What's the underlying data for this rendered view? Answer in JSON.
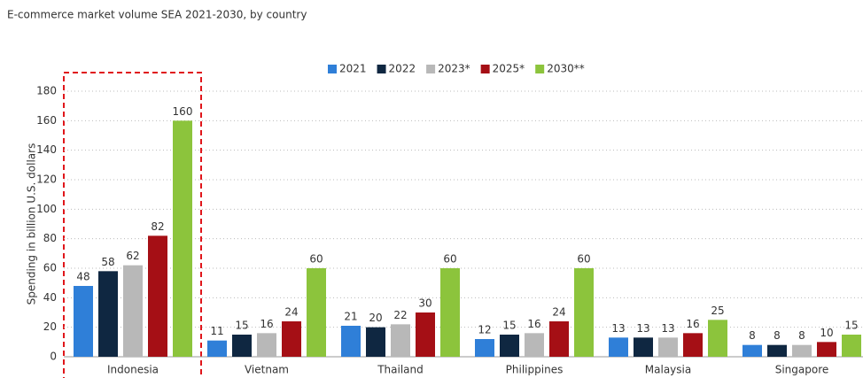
{
  "chart_data": {
    "type": "bar",
    "title": "E-commerce market volume SEA 2021-2030, by country",
    "y_label": "Spending in billion U.S. dollars",
    "categories": [
      "Indonesia",
      "Vietnam",
      "Thailand",
      "Philippines",
      "Malaysia",
      "Singapore"
    ],
    "series": [
      {
        "name": "2021",
        "color": "#2f7fd8",
        "values": [
          48,
          11,
          21,
          12,
          13,
          8
        ]
      },
      {
        "name": "2022",
        "color": "#0f2741",
        "values": [
          58,
          15,
          20,
          15,
          13,
          8
        ]
      },
      {
        "name": "2023*",
        "color": "#b8b8b8",
        "values": [
          62,
          16,
          22,
          16,
          13,
          8
        ]
      },
      {
        "name": "2025*",
        "color": "#a50f15",
        "values": [
          82,
          24,
          30,
          24,
          16,
          10
        ]
      },
      {
        "name": "2030**",
        "color": "#8cc43c",
        "values": [
          160,
          60,
          60,
          60,
          25,
          15
        ]
      }
    ],
    "ylim": [
      0,
      180
    ],
    "yticks": [
      0,
      20,
      40,
      60,
      80,
      100,
      120,
      140,
      160,
      180
    ],
    "grid": true
  }
}
